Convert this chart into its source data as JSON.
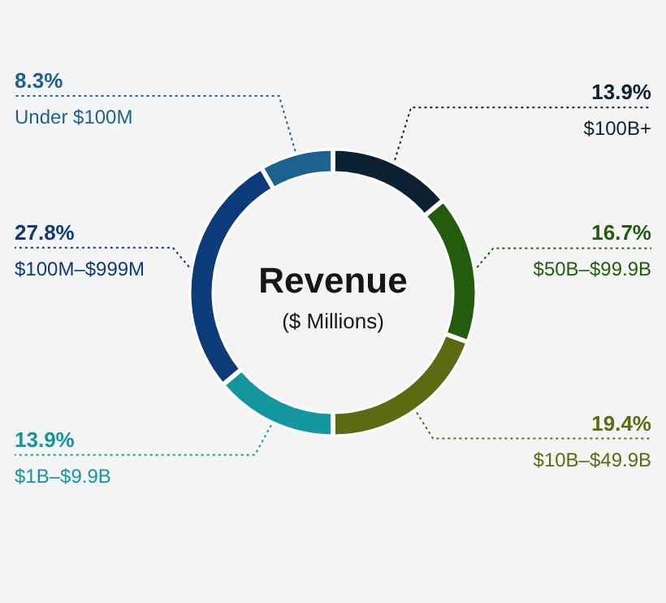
{
  "chart_data": {
    "type": "donut",
    "title": "Revenue",
    "subtitle": "($ Millions)",
    "categories": [
      "$100B+",
      "$50B–$99.9B",
      "$10B–$49.9B",
      "$1B–$9.9B",
      "$100M–$999M",
      "Under $100M"
    ],
    "values": [
      13.9,
      16.7,
      19.4,
      13.9,
      27.8,
      8.3
    ],
    "value_labels": [
      "13.9%",
      "16.7%",
      "19.4%",
      "13.9%",
      "27.8%",
      "8.3%"
    ],
    "colors": [
      "#0c2233",
      "#245c0e",
      "#5c6b12",
      "#1396a0",
      "#0d3a7a",
      "#1d6191"
    ]
  }
}
